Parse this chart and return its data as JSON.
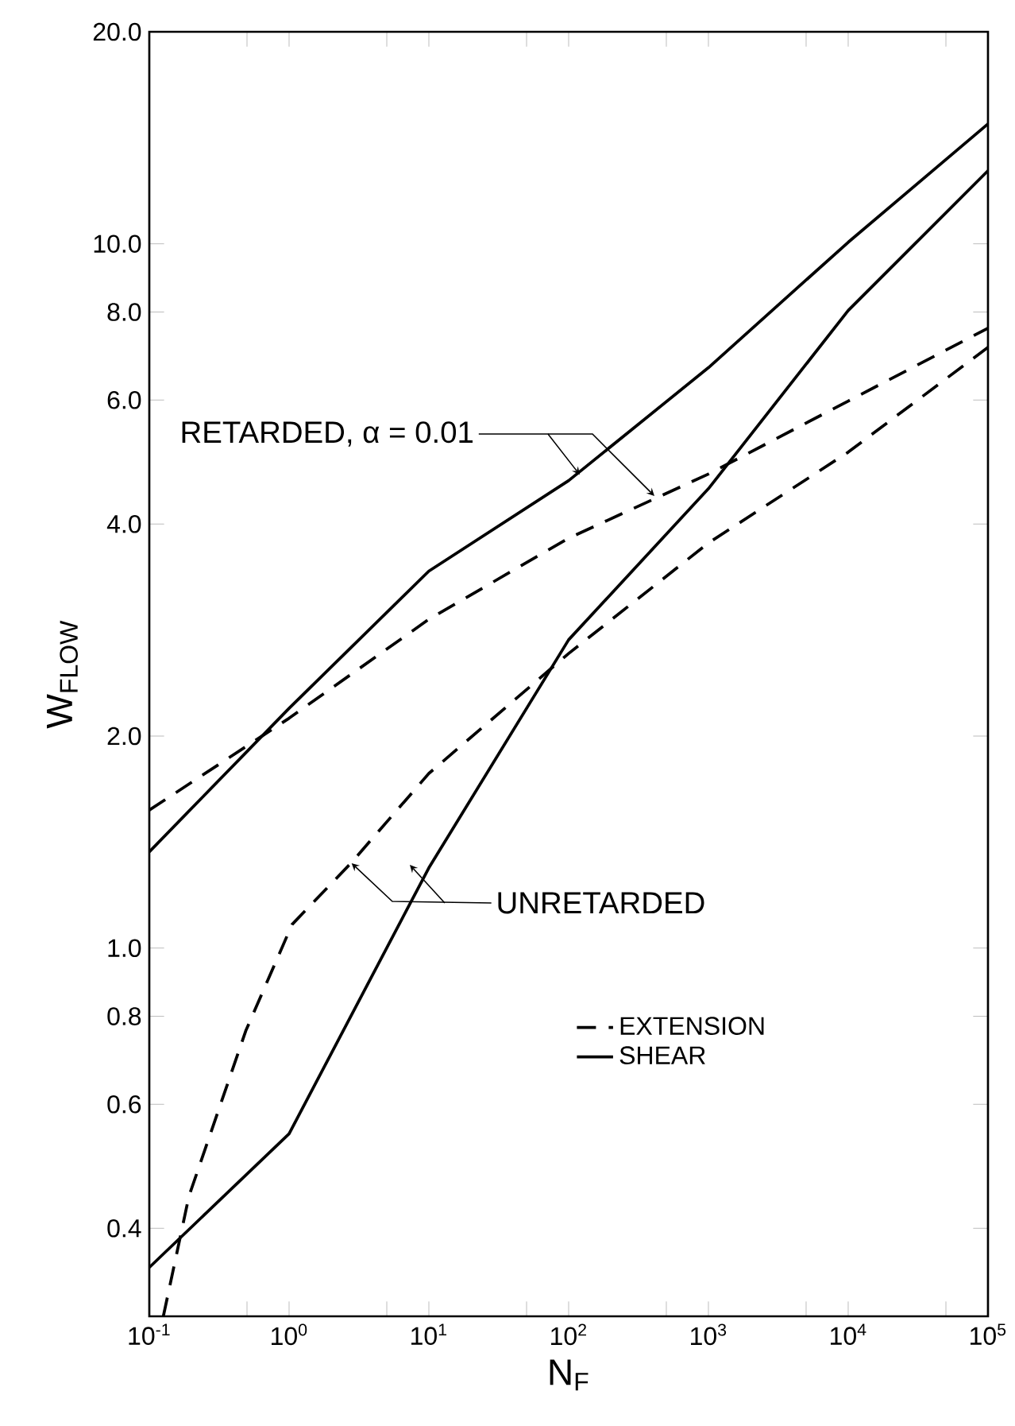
{
  "chart_data": {
    "type": "line",
    "xlabel": "N$_{F}$",
    "ylabel": "W$_{FLOW}$",
    "log": "xy",
    "xlim": [
      0.1,
      100000
    ],
    "ylim": [
      0.3,
      20
    ],
    "xticks": [
      {
        "value": 0.1,
        "label": "10$^{-1}$"
      },
      {
        "value": 0.5,
        "label": null
      },
      {
        "value": 1,
        "label": "10$^{0}$"
      },
      {
        "value": 5,
        "label": null
      },
      {
        "value": 10,
        "label": "10$^{1}$"
      },
      {
        "value": 50,
        "label": null
      },
      {
        "value": 100,
        "label": "10$^{2}$"
      },
      {
        "value": 500,
        "label": null
      },
      {
        "value": 1000,
        "label": "10$^{3}$"
      },
      {
        "value": 5000,
        "label": null
      },
      {
        "value": 10000,
        "label": "10$^{4}$"
      },
      {
        "value": 50000,
        "label": null
      },
      {
        "value": 100000,
        "label": "10$^{5}$"
      }
    ],
    "yticks": [
      {
        "value": 0.4,
        "label": "0.4"
      },
      {
        "value": 0.6,
        "label": "0.6"
      },
      {
        "value": 0.8,
        "label": "0.8"
      },
      {
        "value": 1,
        "label": "1.0"
      },
      {
        "value": 2,
        "label": "2.0"
      },
      {
        "value": 4,
        "label": "4.0"
      },
      {
        "value": 6,
        "label": "6.0"
      },
      {
        "value": 8,
        "label": "8.0"
      },
      {
        "value": 10,
        "label": "10.0"
      },
      {
        "value": 20,
        "label": "20.0"
      }
    ],
    "legend": "bottom right",
    "grid": false,
    "marker": "none",
    "annotations": [
      {
        "text": "RETARDED, α = 0.01",
        "x": 120,
        "y": 4.7
      },
      {
        "text": "UNRETARDED",
        "x": 2.8,
        "y": 1.32
      }
    ],
    "series": [
      {
        "name": "EXTENSION",
        "color": "#000000",
        "line_style": "dashed",
        "x": [
          0.1,
          1,
          10,
          100,
          1000,
          10000,
          100000
        ],
        "values": [
          1.57,
          2.12,
          2.93,
          3.82,
          4.71,
          5.98,
          7.59
        ]
      },
      {
        "name": "SHEAR",
        "color": "#000000",
        "line_style": "solid",
        "x": [
          0.1,
          1,
          10,
          100,
          1000,
          10000,
          100000
        ],
        "values": [
          1.37,
          2.19,
          3.43,
          4.61,
          6.67,
          10.05,
          14.8
        ]
      },
      {
        "color": "#000000",
        "line_style": "dashed",
        "x": [
          0.126,
          0.192,
          0.49,
          1.05,
          2.77,
          10,
          100,
          1000,
          10000,
          100000
        ],
        "values": [
          0.3,
          0.444,
          0.763,
          1.08,
          1.32,
          1.77,
          2.62,
          3.76,
          5.06,
          7.13
        ]
      },
      {
        "color": "#000000",
        "line_style": "solid",
        "x": [
          0.1,
          1,
          10,
          100,
          1000,
          10000,
          100000
        ],
        "values": [
          0.352,
          0.545,
          1.3,
          2.74,
          4.49,
          8.04,
          12.7
        ]
      }
    ]
  }
}
